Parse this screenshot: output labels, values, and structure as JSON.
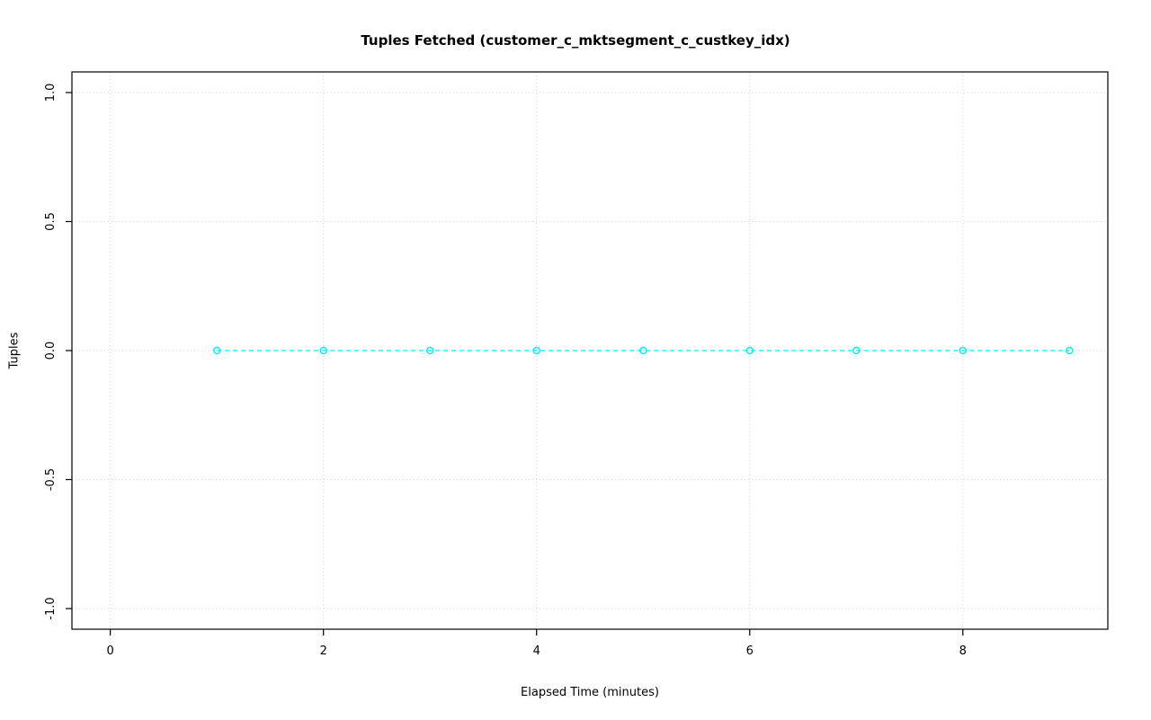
{
  "page": {
    "background": "#ffffff"
  },
  "chart_data": {
    "type": "scatter",
    "title": "Tuples Fetched (customer_c_mktsegment_c_custkey_idx)",
    "xlabel": "Elapsed Time (minutes)",
    "ylabel": "Tuples",
    "x": [
      1,
      2,
      3,
      4,
      5,
      6,
      7,
      8,
      9
    ],
    "y": [
      0,
      0,
      0,
      0,
      0,
      0,
      0,
      0,
      0
    ],
    "xlim": [
      -0.36,
      9.36
    ],
    "ylim": [
      -1.08,
      1.08
    ],
    "xticks": [
      0,
      2,
      4,
      6,
      8
    ],
    "xtick_labels": [
      "0",
      "2",
      "4",
      "6",
      "8"
    ],
    "yticks": [
      -1.0,
      -0.5,
      0.0,
      0.5,
      1.0
    ],
    "ytick_labels": [
      "-1.0",
      "-0.5",
      "0.0",
      "0.5",
      "1.0"
    ],
    "grid": true,
    "legend": "none",
    "marker": "open-circle",
    "line_style": "dashed",
    "series_color": "#00EEEE",
    "grid_color": "#D3D3D3",
    "axis_color": "#000000"
  }
}
